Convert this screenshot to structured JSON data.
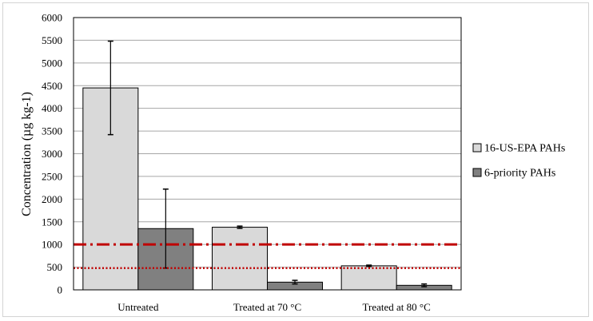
{
  "chart_data": {
    "type": "bar",
    "title": "",
    "xlabel": "",
    "ylabel": "Concentration (µg kg-1)",
    "ylim": [
      0,
      6000
    ],
    "ytick_step": 500,
    "grid": true,
    "legend_position": "right",
    "categories": [
      "Untreated",
      "Treated at 70 °C",
      "Treated at 80 °C"
    ],
    "series": [
      {
        "name": "16-US-EPA PAHs",
        "color": "#d9d9d9",
        "values": [
          4450,
          1380,
          530
        ],
        "errors": [
          1030,
          25,
          15
        ]
      },
      {
        "name": "6-priority PAHs",
        "color": "#808080",
        "values": [
          1350,
          170,
          100
        ],
        "errors": [
          870,
          40,
          30
        ]
      }
    ],
    "reference_lines": [
      {
        "value": 1000,
        "style": "dash-dot",
        "color": "#c00000"
      },
      {
        "value": 480,
        "style": "dotted",
        "color": "#c00000"
      }
    ]
  }
}
